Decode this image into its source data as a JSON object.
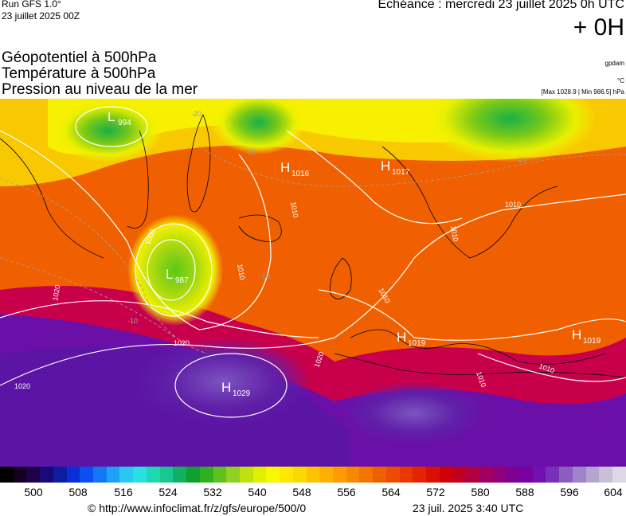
{
  "header": {
    "run_title": "Run GFS 1.0°",
    "run_date": "23 juillet 2025 00Z",
    "echeance": "Echéance : mercredi 23 juillet 2025 0h UTC",
    "lead_time": "+ 0H"
  },
  "layers": {
    "line1": "Géopotentiel à 500hPa",
    "line2": "Température à 500hPa",
    "line3": "Pression au niveau de la mer"
  },
  "units": {
    "geopotential": "gpdam",
    "temperature": "°C",
    "pressure_range": "[Max 1028.9 | Min 986.5] hPa"
  },
  "pressure_centers": [
    {
      "type": "L",
      "value": "994"
    },
    {
      "type": "H",
      "value": "1016"
    },
    {
      "type": "H",
      "value": "1017"
    },
    {
      "type": "L",
      "value": "987"
    },
    {
      "type": "H",
      "value": "1019"
    },
    {
      "type": "H",
      "value": "1019"
    },
    {
      "type": "H",
      "value": "1029"
    }
  ],
  "isobar_labels": [
    "1000",
    "1010",
    "1010",
    "1010",
    "1010",
    "1010",
    "1010",
    "1010",
    "1020",
    "1020",
    "1020",
    "1020"
  ],
  "temperature_labels": [
    "-20",
    "-20",
    "-10",
    "-10",
    "-20"
  ],
  "colorbar": {
    "ticks": [
      "500",
      "508",
      "516",
      "524",
      "532",
      "540",
      "548",
      "556",
      "564",
      "572",
      "580",
      "588",
      "596",
      "604"
    ],
    "colors": [
      "#000000",
      "#14001e",
      "#200046",
      "#1a0a78",
      "#0d1ca0",
      "#0a2fd8",
      "#0a50f0",
      "#1478f5",
      "#1ea0f5",
      "#28c8f0",
      "#28e0e0",
      "#20d8b0",
      "#18c890",
      "#10b060",
      "#10a030",
      "#30b020",
      "#60c020",
      "#90d020",
      "#c0e010",
      "#e0f000",
      "#f8f800",
      "#fce800",
      "#fcd800",
      "#fcc400",
      "#fcb000",
      "#fc9c00",
      "#f88800",
      "#f47400",
      "#f06000",
      "#ec4c00",
      "#e83800",
      "#e42400",
      "#dc1000",
      "#d00008",
      "#c00020",
      "#b00040",
      "#a00060",
      "#90007a",
      "#800090",
      "#7800a0",
      "#7010b0",
      "#7830b8",
      "#8c5cc0",
      "#a084c8",
      "#b4a4d0",
      "#c8c0d8",
      "#dcd8e4"
    ]
  },
  "footer": {
    "credit": "© http://www.infoclimat.fr/z/gfs/europe/500/0",
    "timestamp": "23 juil. 2025  3:40 UTC"
  }
}
